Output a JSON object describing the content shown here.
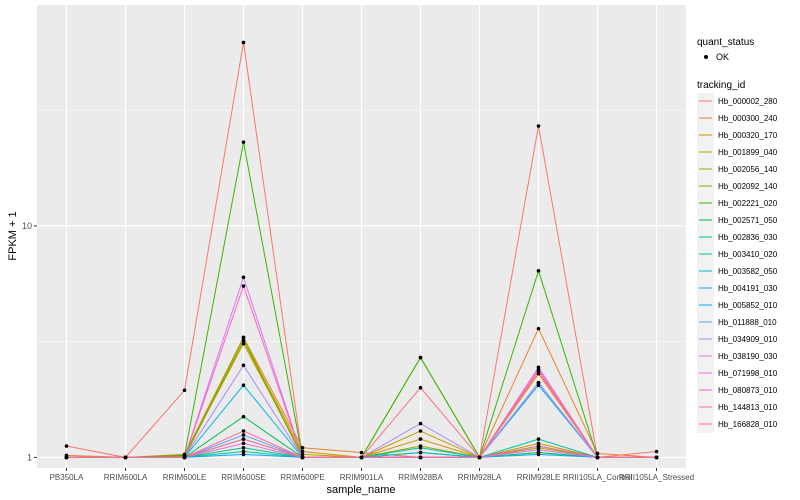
{
  "chart_data": {
    "type": "line",
    "xlabel": "sample_name",
    "ylabel": "FPKM + 1",
    "y_scale": "log10",
    "ylim": [
      0.9,
      90
    ],
    "y_ticks": [
      1,
      10
    ],
    "grid": true,
    "legend_position": "right",
    "categories": [
      "PB350LA",
      "RRIM600LA",
      "RRIM600LE",
      "RRIM600SE",
      "RRIM600PE",
      "RRIM901LA",
      "RRIM928BA",
      "RRIM928LA",
      "RRIM928LE",
      "RRII105LA_Control",
      "RRII105LA_Stressed"
    ],
    "shape_legend": {
      "title": "quant_status",
      "items": [
        "OK"
      ]
    },
    "color_legend_title": "tracking_id",
    "series": [
      {
        "name": "Hb_000002_280",
        "color": "#F8766D",
        "values": [
          1.12,
          1.0,
          1.95,
          62.0,
          1.0,
          1.0,
          1.0,
          1.0,
          27.0,
          1.0,
          1.06
        ]
      },
      {
        "name": "Hb_000300_240",
        "color": "#EA8331",
        "values": [
          1.02,
          1.0,
          1.03,
          3.3,
          1.1,
          1.05,
          1.0,
          1.0,
          3.6,
          1.04,
          1.0
        ]
      },
      {
        "name": "Hb_000320_170",
        "color": "#D89000",
        "values": [
          1.0,
          1.0,
          1.02,
          3.2,
          1.06,
          1.0,
          1.2,
          1.0,
          2.3,
          1.0,
          1.0
        ]
      },
      {
        "name": "Hb_001899_040",
        "color": "#C09B00",
        "values": [
          1.0,
          1.0,
          1.02,
          3.1,
          1.03,
          1.0,
          1.3,
          1.0,
          1.15,
          1.0,
          1.0
        ]
      },
      {
        "name": "Hb_002056_140",
        "color": "#A3A500",
        "values": [
          1.0,
          1.0,
          1.01,
          3.3,
          1.0,
          1.0,
          1.12,
          1.0,
          1.1,
          1.0,
          1.0
        ]
      },
      {
        "name": "Hb_002092_140",
        "color": "#7CAE00",
        "values": [
          1.0,
          1.0,
          1.0,
          3.2,
          1.0,
          1.0,
          2.7,
          1.0,
          1.05,
          1.0,
          1.0
        ]
      },
      {
        "name": "Hb_002221_020",
        "color": "#39B600",
        "values": [
          1.0,
          1.0,
          1.02,
          23.0,
          1.0,
          1.0,
          2.7,
          1.0,
          6.4,
          1.0,
          1.0
        ]
      },
      {
        "name": "Hb_002571_050",
        "color": "#00BB4E",
        "values": [
          1.0,
          1.0,
          1.0,
          1.5,
          1.0,
          1.0,
          1.05,
          1.0,
          1.12,
          1.0,
          1.0
        ]
      },
      {
        "name": "Hb_002836_030",
        "color": "#00BF7D",
        "values": [
          1.0,
          1.0,
          1.0,
          1.1,
          1.0,
          1.0,
          1.0,
          1.0,
          1.05,
          1.0,
          1.0
        ]
      },
      {
        "name": "Hb_003410_020",
        "color": "#00C1A3",
        "values": [
          1.0,
          1.0,
          1.0,
          1.06,
          1.0,
          1.0,
          1.1,
          1.0,
          1.2,
          1.0,
          1.0
        ]
      },
      {
        "name": "Hb_003582_050",
        "color": "#00BFC4",
        "values": [
          1.0,
          1.0,
          1.0,
          1.2,
          1.0,
          1.0,
          1.05,
          1.0,
          2.1,
          1.0,
          1.0
        ]
      },
      {
        "name": "Hb_004191_030",
        "color": "#00B9E3",
        "values": [
          1.0,
          1.0,
          1.0,
          2.05,
          1.0,
          1.0,
          1.0,
          1.0,
          2.05,
          1.0,
          1.0
        ]
      },
      {
        "name": "Hb_005852_010",
        "color": "#00ADFA",
        "values": [
          1.0,
          1.0,
          1.0,
          1.03,
          1.0,
          1.0,
          1.0,
          1.0,
          1.03,
          1.0,
          1.0
        ]
      },
      {
        "name": "Hb_011888_010",
        "color": "#619CFF",
        "values": [
          1.0,
          1.0,
          1.0,
          1.25,
          1.0,
          1.0,
          1.0,
          1.0,
          2.1,
          1.0,
          1.0
        ]
      },
      {
        "name": "Hb_034909_010",
        "color": "#AE87FF",
        "values": [
          1.0,
          1.0,
          1.0,
          2.5,
          1.0,
          1.0,
          1.4,
          1.0,
          2.1,
          1.0,
          1.0
        ]
      },
      {
        "name": "Hb_038190_030",
        "color": "#DB72FB",
        "values": [
          1.0,
          1.0,
          1.0,
          6.0,
          1.0,
          1.0,
          1.0,
          1.0,
          2.45,
          1.0,
          1.0
        ]
      },
      {
        "name": "Hb_071998_010",
        "color": "#F564E3",
        "values": [
          1.0,
          1.0,
          1.0,
          1.15,
          1.0,
          1.0,
          1.0,
          1.0,
          1.08,
          1.0,
          1.0
        ]
      },
      {
        "name": "Hb_080873_010",
        "color": "#FF61C3",
        "values": [
          1.0,
          1.0,
          1.0,
          5.5,
          1.0,
          1.0,
          1.0,
          1.0,
          2.35,
          1.0,
          1.0
        ]
      },
      {
        "name": "Hb_144813_010",
        "color": "#FF699C",
        "values": [
          1.0,
          1.0,
          1.0,
          1.3,
          1.0,
          1.0,
          1.0,
          1.0,
          1.12,
          1.0,
          1.0
        ]
      },
      {
        "name": "Hb_166828_010",
        "color": "#FC717F",
        "values": [
          1.0,
          1.0,
          1.0,
          1.2,
          1.0,
          1.0,
          2.0,
          1.0,
          2.4,
          1.0,
          1.0
        ]
      }
    ]
  }
}
